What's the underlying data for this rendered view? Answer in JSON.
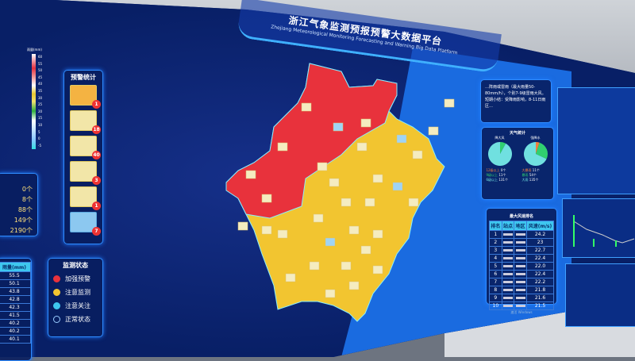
{
  "header": {
    "title": "浙江气象监测预报预警大数据平台",
    "subtitle": "Zhejiang Meteorological Monitoring Forecasting and Warning Big Data Platform"
  },
  "scale": {
    "label": "雨量(mm)",
    "ticks": [
      "60",
      "55",
      "50",
      "45",
      "40",
      "35",
      "30",
      "25",
      "20",
      "15",
      "10",
      "5",
      "0",
      "-5"
    ]
  },
  "warning_stats": {
    "title": "预警统计",
    "items": [
      {
        "type": "orange",
        "count": "1"
      },
      {
        "type": "yellow",
        "count": "18"
      },
      {
        "type": "yellow",
        "count": "40"
      },
      {
        "type": "yellow",
        "count": "3"
      },
      {
        "type": "yellow",
        "count": "1"
      },
      {
        "type": "blue",
        "count": "7"
      }
    ]
  },
  "status_legend": {
    "title": "监测状态",
    "items": [
      {
        "label": "加强预警",
        "color": "#e8323c"
      },
      {
        "label": "注意监测",
        "color": "#f2c530"
      },
      {
        "label": "注意关注",
        "color": "#3ec7ef"
      },
      {
        "label": "正常状态",
        "color": "transparent"
      }
    ]
  },
  "counts": [
    "0个",
    "8个",
    "88个",
    "149个",
    "2190个"
  ],
  "left_table": {
    "header": "雨量(mm)",
    "values": [
      "55.5",
      "50.1",
      "43.8",
      "42.8",
      "42.3",
      "41.5",
      "40.2",
      "40.2",
      "40.1"
    ]
  },
  "forecast_text": "…阵雨或雷雨（最大雨量50-80mm/h），个别7-9级雷雨大风。短期小结：受降雨影响，8-11日雨区…",
  "pie_panel": {
    "title": "天气统计",
    "pies": [
      {
        "title": "降大风",
        "legend": [
          {
            "label": "12级以上",
            "value": "0个",
            "color": "#f08040"
          },
          {
            "label": "9级以上",
            "value": "11个",
            "color": "#30d070"
          },
          {
            "label": "6级以上",
            "value": "131个",
            "color": "#70e0e0"
          }
        ],
        "fractions": [
          0,
          0.08,
          0.92
        ]
      },
      {
        "title": "强降水",
        "legend": [
          {
            "label": "大暴雨",
            "value": "11个",
            "color": "#f08040"
          },
          {
            "label": "暴雨",
            "value": "54个",
            "color": "#30d070"
          },
          {
            "label": "大雨",
            "value": "135个",
            "color": "#70e0e0"
          }
        ],
        "fractions": [
          0.05,
          0.27,
          0.68
        ]
      }
    ]
  },
  "rank_table": {
    "title": "最大风速排名",
    "headers": [
      "排名",
      "站点",
      "地区",
      "风速(m/s)"
    ],
    "rows": [
      [
        "1",
        "24.2"
      ],
      [
        "2",
        "23"
      ],
      [
        "3",
        "22.7"
      ],
      [
        "4",
        "22.4"
      ],
      [
        "5",
        "22.0"
      ],
      [
        "6",
        "22.4"
      ],
      [
        "7",
        "22.2"
      ],
      [
        "8",
        "21.8"
      ],
      [
        "9",
        "21.6"
      ],
      [
        "10",
        "21.5"
      ]
    ]
  },
  "watermark": "激活 Windows"
}
